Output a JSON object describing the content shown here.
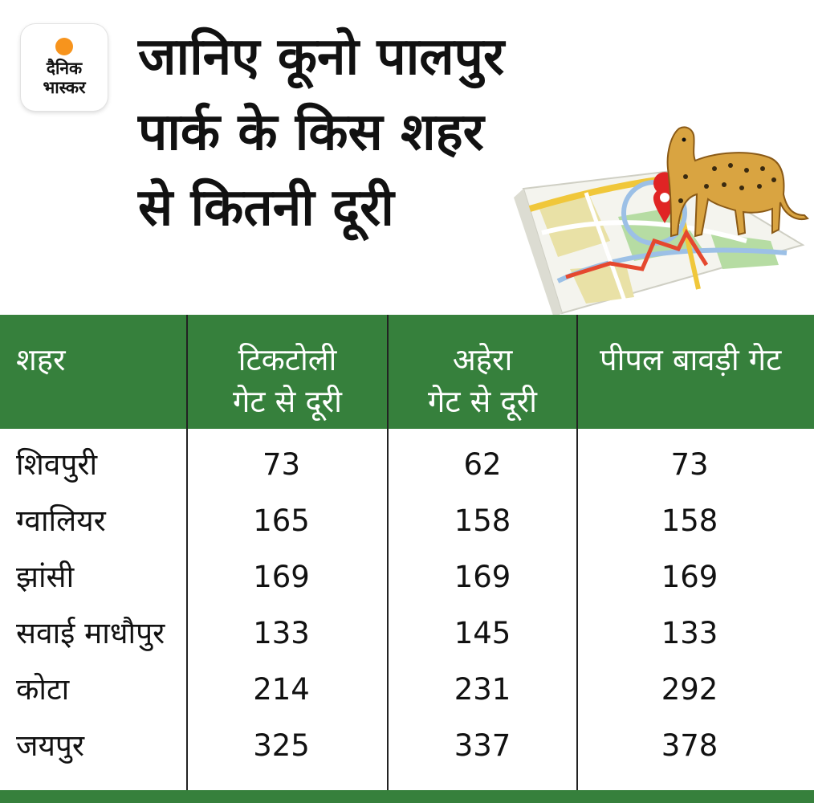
{
  "brand": {
    "line1": "दैनिक",
    "line2": "भास्कर",
    "accent": "#f7941d"
  },
  "headline": [
    "जानिए कूनो पालपुर",
    "पार्क के किस शहर",
    "से कितनी दूरी"
  ],
  "colors": {
    "header_bg": "#36803c",
    "header_text": "#ffffff",
    "route": "#e5482e",
    "pin": "#e02424"
  },
  "illustration": {
    "icons": [
      "cheetah-icon",
      "map-icon",
      "map-pin-icon"
    ]
  },
  "chart_data": {
    "type": "table",
    "columns": [
      {
        "label": [
          "शहर"
        ]
      },
      {
        "label": [
          "टिकटोली",
          "गेट से दूरी"
        ]
      },
      {
        "label": [
          "अहेरा",
          "गेट से दूरी"
        ]
      },
      {
        "label": [
          "पीपल बावड़ी गेट"
        ]
      }
    ],
    "rows": [
      {
        "city": "शिवपुरी",
        "values": [
          "73",
          "62",
          "73"
        ]
      },
      {
        "city": "ग्वालियर",
        "values": [
          "165",
          "158",
          "158"
        ]
      },
      {
        "city": "झांसी",
        "values": [
          "169",
          "169",
          "169"
        ]
      },
      {
        "city": "सवाई माधौपुर",
        "values": [
          "133",
          "145",
          "133"
        ]
      },
      {
        "city": "कोटा",
        "values": [
          "214",
          "231",
          "292"
        ]
      },
      {
        "city": "जयपुर",
        "values": [
          "325",
          "337",
          "378"
        ]
      }
    ]
  }
}
